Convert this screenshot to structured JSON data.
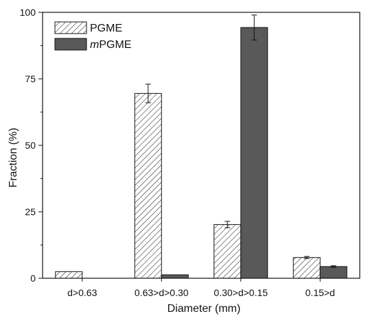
{
  "chart_data": {
    "type": "bar",
    "categories": [
      "d>0.63",
      "0.63>d>0.30",
      "0.30>d>0.15",
      "0.15>d"
    ],
    "series": [
      {
        "name": "PGME",
        "name_prefix_italic": "",
        "name_rest": "PGME",
        "fill": "hatched",
        "color": "#ffffff",
        "values": [
          2.5,
          69.5,
          20.2,
          7.8
        ],
        "errors": [
          0,
          3.5,
          1.2,
          0.4
        ]
      },
      {
        "name": "mPGME",
        "name_prefix_italic": "m",
        "name_rest": "PGME",
        "fill": "solid",
        "color": "#595959",
        "values": [
          0,
          1.3,
          94.3,
          4.4
        ],
        "errors": [
          0,
          0,
          4.7,
          0.3
        ]
      }
    ],
    "xlabel": "Diameter (mm)",
    "ylabel": "Fraction (%)",
    "ylim": [
      0,
      100
    ],
    "yticks": [
      0,
      25,
      50,
      75,
      100
    ],
    "legend_position": "top-left",
    "grid": false
  }
}
